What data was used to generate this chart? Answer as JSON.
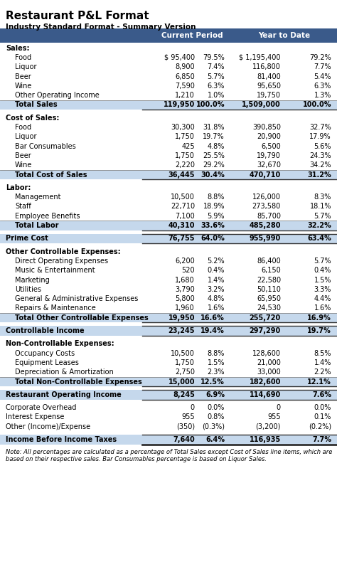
{
  "title": "Restaurant P&L Format",
  "subtitle": "Industry Standard Format - Summary Version",
  "header_bg": "#3A5A8A",
  "header_text": "#FFFFFF",
  "total_bg": "#C5D8EC",
  "prime_cost_bg": "#C5D8EC",
  "col_headers": [
    "Current Period",
    "Year to Date"
  ],
  "rows": [
    {
      "label": "Sales:",
      "type": "section_header",
      "indent": 0
    },
    {
      "label": "Food",
      "type": "item",
      "indent": 1,
      "cp_val": "$ 95,400",
      "cp_pct": "79.5%",
      "ytd_val": "$ 1,195,400",
      "ytd_pct": "79.2%"
    },
    {
      "label": "Liquor",
      "type": "item",
      "indent": 1,
      "cp_val": "8,900",
      "cp_pct": "7.4%",
      "ytd_val": "116,800",
      "ytd_pct": "7.7%"
    },
    {
      "label": "Beer",
      "type": "item",
      "indent": 1,
      "cp_val": "6,850",
      "cp_pct": "5.7%",
      "ytd_val": "81,400",
      "ytd_pct": "5.4%"
    },
    {
      "label": "Wine",
      "type": "item",
      "indent": 1,
      "cp_val": "7,590",
      "cp_pct": "6.3%",
      "ytd_val": "95,650",
      "ytd_pct": "6.3%"
    },
    {
      "label": "Other Operating Income",
      "type": "item",
      "indent": 1,
      "cp_val": "1,210",
      "cp_pct": "1.0%",
      "ytd_val": "19,750",
      "ytd_pct": "1.3%"
    },
    {
      "label": "Total Sales",
      "type": "total",
      "indent": 1,
      "cp_val": "119,950",
      "cp_pct": "100.0%",
      "ytd_val": "1,509,000",
      "ytd_pct": "100.0%"
    },
    {
      "label": "",
      "type": "spacer"
    },
    {
      "label": "Cost of Sales:",
      "type": "section_header",
      "indent": 0
    },
    {
      "label": "Food",
      "type": "item",
      "indent": 1,
      "cp_val": "30,300",
      "cp_pct": "31.8%",
      "ytd_val": "390,850",
      "ytd_pct": "32.7%"
    },
    {
      "label": "Liquor",
      "type": "item",
      "indent": 1,
      "cp_val": "1,750",
      "cp_pct": "19.7%",
      "ytd_val": "20,900",
      "ytd_pct": "17.9%"
    },
    {
      "label": "Bar Consumables",
      "type": "item",
      "indent": 1,
      "cp_val": "425",
      "cp_pct": "4.8%",
      "ytd_val": "6,500",
      "ytd_pct": "5.6%"
    },
    {
      "label": "Beer",
      "type": "item",
      "indent": 1,
      "cp_val": "1,750",
      "cp_pct": "25.5%",
      "ytd_val": "19,790",
      "ytd_pct": "24.3%"
    },
    {
      "label": "Wine",
      "type": "item",
      "indent": 1,
      "cp_val": "2,220",
      "cp_pct": "29.2%",
      "ytd_val": "32,670",
      "ytd_pct": "34.2%"
    },
    {
      "label": "Total Cost of Sales",
      "type": "total",
      "indent": 1,
      "cp_val": "36,445",
      "cp_pct": "30.4%",
      "ytd_val": "470,710",
      "ytd_pct": "31.2%"
    },
    {
      "label": "",
      "type": "spacer"
    },
    {
      "label": "Labor:",
      "type": "section_header",
      "indent": 0
    },
    {
      "label": "Management",
      "type": "item",
      "indent": 1,
      "cp_val": "10,500",
      "cp_pct": "8.8%",
      "ytd_val": "126,000",
      "ytd_pct": "8.3%"
    },
    {
      "label": "Staff",
      "type": "item",
      "indent": 1,
      "cp_val": "22,710",
      "cp_pct": "18.9%",
      "ytd_val": "273,580",
      "ytd_pct": "18.1%"
    },
    {
      "label": "Employee Benefits",
      "type": "item",
      "indent": 1,
      "cp_val": "7,100",
      "cp_pct": "5.9%",
      "ytd_val": "85,700",
      "ytd_pct": "5.7%"
    },
    {
      "label": "Total Labor",
      "type": "total",
      "indent": 1,
      "cp_val": "40,310",
      "cp_pct": "33.6%",
      "ytd_val": "485,280",
      "ytd_pct": "32.2%"
    },
    {
      "label": "",
      "type": "spacer"
    },
    {
      "label": "Prime Cost",
      "type": "prime_cost",
      "indent": 0,
      "cp_val": "76,755",
      "cp_pct": "64.0%",
      "ytd_val": "955,990",
      "ytd_pct": "63.4%"
    },
    {
      "label": "",
      "type": "spacer"
    },
    {
      "label": "Other Controllable Expenses:",
      "type": "section_header",
      "indent": 0
    },
    {
      "label": "Direct Operating Expenses",
      "type": "item",
      "indent": 1,
      "cp_val": "6,200",
      "cp_pct": "5.2%",
      "ytd_val": "86,400",
      "ytd_pct": "5.7%"
    },
    {
      "label": "Music & Entertainment",
      "type": "item",
      "indent": 1,
      "cp_val": "520",
      "cp_pct": "0.4%",
      "ytd_val": "6,150",
      "ytd_pct": "0.4%"
    },
    {
      "label": "Marketing",
      "type": "item",
      "indent": 1,
      "cp_val": "1,680",
      "cp_pct": "1.4%",
      "ytd_val": "22,580",
      "ytd_pct": "1.5%"
    },
    {
      "label": "Utilities",
      "type": "item",
      "indent": 1,
      "cp_val": "3,790",
      "cp_pct": "3.2%",
      "ytd_val": "50,110",
      "ytd_pct": "3.3%"
    },
    {
      "label": "General & Administrative Expenses",
      "type": "item",
      "indent": 1,
      "cp_val": "5,800",
      "cp_pct": "4.8%",
      "ytd_val": "65,950",
      "ytd_pct": "4.4%"
    },
    {
      "label": "Repairs & Maintenance",
      "type": "item",
      "indent": 1,
      "cp_val": "1,960",
      "cp_pct": "1.6%",
      "ytd_val": "24,530",
      "ytd_pct": "1.6%"
    },
    {
      "label": "Total Other Controllable Expenses",
      "type": "total",
      "indent": 1,
      "cp_val": "19,950",
      "cp_pct": "16.6%",
      "ytd_val": "255,720",
      "ytd_pct": "16.9%"
    },
    {
      "label": "",
      "type": "spacer"
    },
    {
      "label": "Controllable Income",
      "type": "highlight_total",
      "indent": 0,
      "cp_val": "23,245",
      "cp_pct": "19.4%",
      "ytd_val": "297,290",
      "ytd_pct": "19.7%"
    },
    {
      "label": "",
      "type": "spacer"
    },
    {
      "label": "Non-Controllable Expenses:",
      "type": "section_header",
      "indent": 0
    },
    {
      "label": "Occupancy Costs",
      "type": "item",
      "indent": 1,
      "cp_val": "10,500",
      "cp_pct": "8.8%",
      "ytd_val": "128,600",
      "ytd_pct": "8.5%"
    },
    {
      "label": "Equipment Leases",
      "type": "item",
      "indent": 1,
      "cp_val": "1,750",
      "cp_pct": "1.5%",
      "ytd_val": "21,000",
      "ytd_pct": "1.4%"
    },
    {
      "label": "Depreciation & Amortization",
      "type": "item",
      "indent": 1,
      "cp_val": "2,750",
      "cp_pct": "2.3%",
      "ytd_val": "33,000",
      "ytd_pct": "2.2%"
    },
    {
      "label": "Total Non-Controllable Expenses",
      "type": "total",
      "indent": 1,
      "cp_val": "15,000",
      "cp_pct": "12.5%",
      "ytd_val": "182,600",
      "ytd_pct": "12.1%"
    },
    {
      "label": "",
      "type": "spacer"
    },
    {
      "label": "Restaurant Operating Income",
      "type": "highlight_total",
      "indent": 0,
      "cp_val": "8,245",
      "cp_pct": "6.9%",
      "ytd_val": "114,690",
      "ytd_pct": "7.6%"
    },
    {
      "label": "",
      "type": "spacer"
    },
    {
      "label": "Corporate Overhead",
      "type": "item",
      "indent": 0,
      "cp_val": "0",
      "cp_pct": "0.0%",
      "ytd_val": "0",
      "ytd_pct": "0.0%"
    },
    {
      "label": "Interest Expense",
      "type": "item",
      "indent": 0,
      "cp_val": "955",
      "cp_pct": "0.8%",
      "ytd_val": "955",
      "ytd_pct": "0.1%"
    },
    {
      "label": "Other (Income)/Expense",
      "type": "item",
      "indent": 0,
      "cp_val": "(350)",
      "cp_pct": "(0.3%)",
      "ytd_val": "(3,200)",
      "ytd_pct": "(0.2%)"
    },
    {
      "label": "",
      "type": "spacer"
    },
    {
      "label": "Income Before Income Taxes",
      "type": "final_total",
      "indent": 0,
      "cp_val": "7,640",
      "cp_pct": "6.4%",
      "ytd_val": "116,935",
      "ytd_pct": "7.7%"
    }
  ],
  "note_line1": "Note: All percentages are calculated as a percentage of Total Sales except Cost of Sales line items, which are",
  "note_line2": "based on their respective sales. Bar Consumables percentage is based on Liquor Sales.",
  "fig_width": 4.74,
  "fig_height": 7.9,
  "dpi": 100
}
